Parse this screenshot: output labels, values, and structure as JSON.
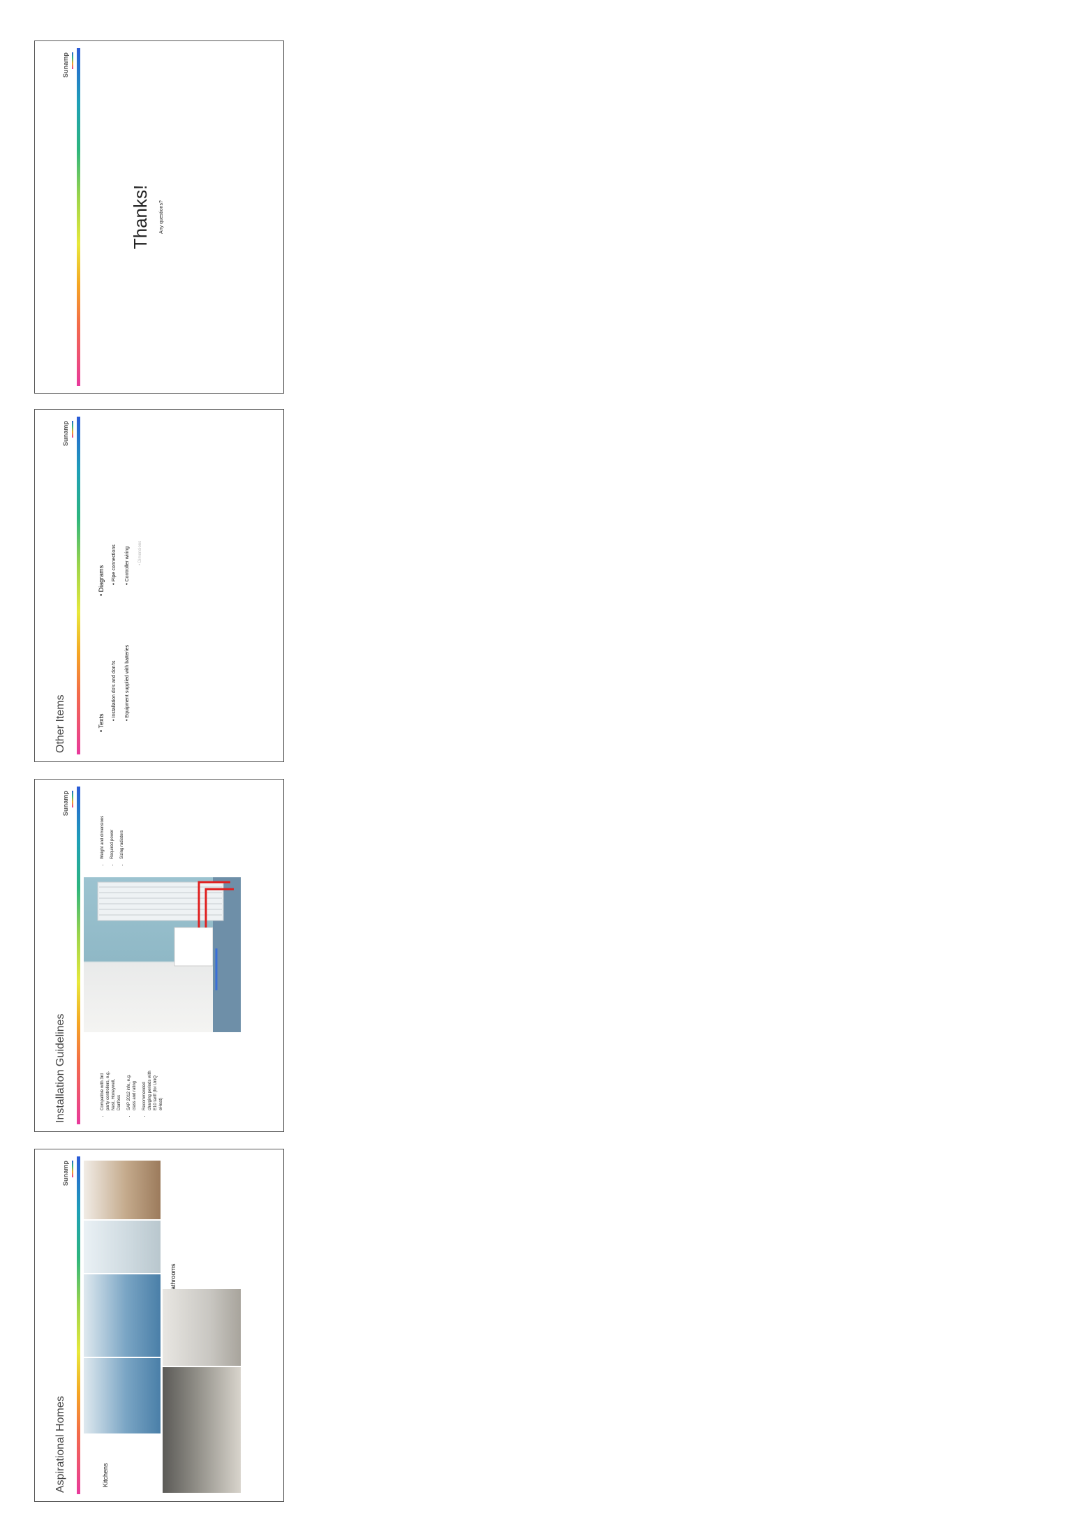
{
  "brand": {
    "logo": "Sunamp"
  },
  "slides": [
    {
      "title": "Aspirational Homes",
      "kitchens_label": "Kitchens",
      "bathrooms_label": "Bathrooms"
    },
    {
      "title": "Installation Guidelines",
      "left_bullets": [
        "Compatible with 3rd party controllers, e.g. Nest, Honeywell, Danfoss",
        "SAP 2012 info, e.g. class and rating",
        "Recommended charging periods with E10 tariff (for UniQ eHeat)"
      ],
      "right_bullets": [
        "Weight and dimensions",
        "Required power",
        "Sizing radiators"
      ]
    },
    {
      "title": "Other Items",
      "texts_label": "Texts",
      "texts_items": [
        "Installation do's and don'ts",
        "Equipment supplied with batteries"
      ],
      "diagrams_label": "Diagrams",
      "diagrams_items": [
        "Pipe connections",
        "Controller wiring"
      ],
      "diagrams_subitem": "Dimensions"
    },
    {
      "title": "Thanks!",
      "subtitle": "Any questions?"
    }
  ],
  "colors": {
    "rainbow": [
      "#e8399c",
      "#f5a623",
      "#e8e83a",
      "#2cb57e",
      "#2a5bd7"
    ],
    "arrow_red": "#e02020",
    "arrow_blue": "#3a6fd8"
  }
}
